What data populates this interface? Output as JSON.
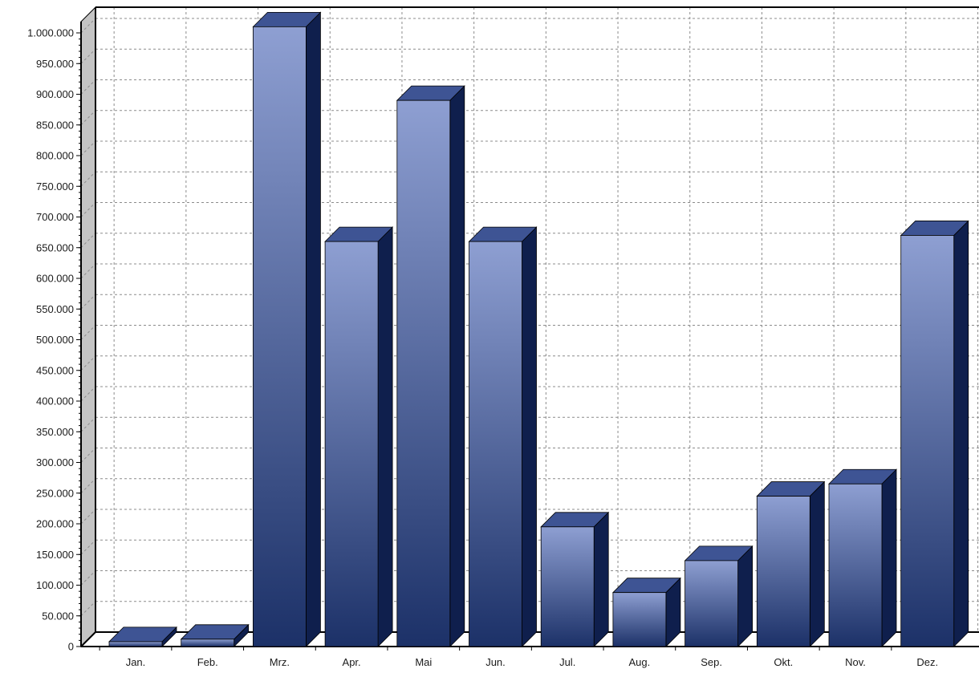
{
  "chart_data": {
    "type": "bar",
    "style": "3d-column",
    "title": "",
    "xlabel": "",
    "ylabel": "",
    "grid": true,
    "legend": "none",
    "ylim": [
      0,
      1000000
    ],
    "y_tick_step": 50000,
    "y_tick_labels": [
      "0",
      "50.000",
      "100.000",
      "150.000",
      "200.000",
      "250.000",
      "300.000",
      "350.000",
      "400.000",
      "450.000",
      "500.000",
      "550.000",
      "600.000",
      "650.000",
      "700.000",
      "750.000",
      "800.000",
      "850.000",
      "900.000",
      "950.000",
      "1.000.000"
    ],
    "categories": [
      "Jan.",
      "Feb.",
      "Mrz.",
      "Apr.",
      "Mai",
      "Jun.",
      "Jul.",
      "Aug.",
      "Sep.",
      "Okt.",
      "Nov.",
      "Dez."
    ],
    "values": [
      8000,
      12000,
      1010000,
      660000,
      890000,
      660000,
      195000,
      88000,
      140000,
      245000,
      265000,
      670000
    ],
    "colors": {
      "bar_top_light": "#8e9fd2",
      "bar_bottom_dark": "#1c3168",
      "bar_side": "#0f1f4d",
      "bar_cap": "#3e5494",
      "wall_left": "#c4c4c4"
    }
  }
}
